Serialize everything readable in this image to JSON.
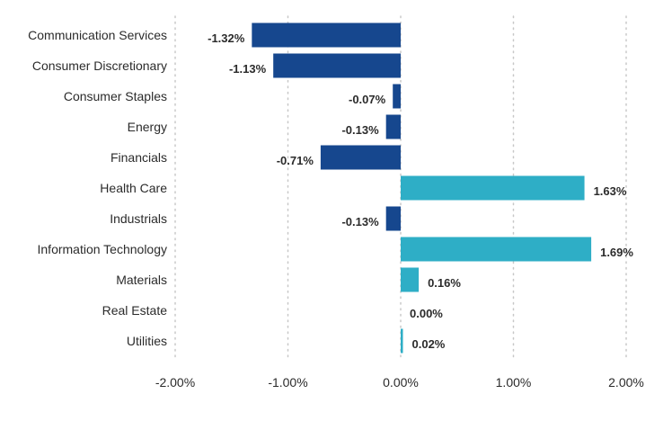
{
  "chart_data": {
    "type": "bar",
    "orientation": "horizontal",
    "categories": [
      "Communication Services",
      "Consumer Discretionary",
      "Consumer Staples",
      "Energy",
      "Financials",
      "Health Care",
      "Industrials",
      "Information Technology",
      "Materials",
      "Real Estate",
      "Utilities"
    ],
    "values": [
      -1.32,
      -1.13,
      -0.07,
      -0.13,
      -0.71,
      1.63,
      -0.13,
      1.69,
      0.16,
      0.0,
      0.02
    ],
    "value_labels": [
      "-1.32%",
      "-1.13%",
      "-0.07%",
      "-0.13%",
      "-0.71%",
      "1.63%",
      "-0.13%",
      "1.69%",
      "0.16%",
      "0.00%",
      "0.02%"
    ],
    "xlim": [
      -2.0,
      2.0
    ],
    "x_ticks": [
      -2.0,
      -1.0,
      0.0,
      1.0,
      2.0
    ],
    "x_tick_labels": [
      "-2.00%",
      "-1.00%",
      "0.00%",
      "1.00%",
      "2.00%"
    ],
    "grid": "vertical dotted",
    "colors": {
      "negative": "#16478e",
      "positive": "#2eaec6"
    },
    "title": "",
    "xlabel": "",
    "ylabel": ""
  }
}
